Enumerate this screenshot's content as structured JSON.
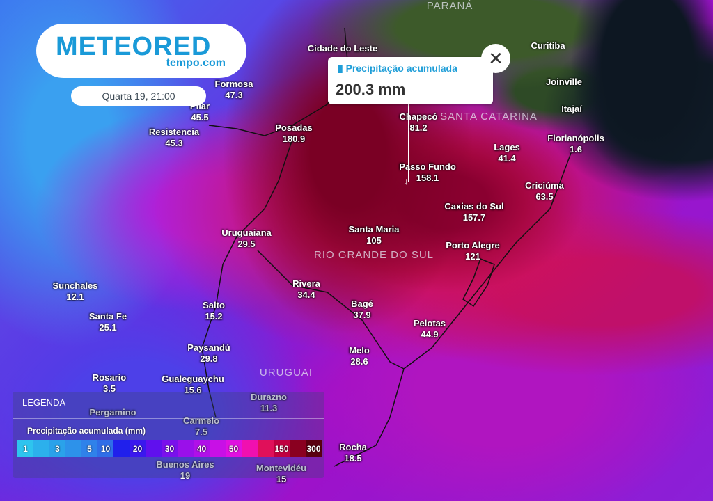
{
  "regions": [
    "PARANÁ",
    "SANTA CATARINA",
    "RIO GRANDE DO SUL",
    "URUGUAI"
  ],
  "cities": [
    {
      "name": "Formosa",
      "value": "47.3"
    },
    {
      "name": "Pilar",
      "value": "45.5"
    },
    {
      "name": "Resistencia",
      "value": "45.3"
    },
    {
      "name": "Cidade do Leste",
      "value": ""
    },
    {
      "name": "Posadas",
      "value": "180.9"
    },
    {
      "name": "Chapecó",
      "value": "81.2"
    },
    {
      "name": "Passo Fundo",
      "value": "158.1"
    },
    {
      "name": "Lages",
      "value": "41.4"
    },
    {
      "name": "Curitiba",
      "value": ""
    },
    {
      "name": "Joinville",
      "value": ""
    },
    {
      "name": "Itajaí",
      "value": ""
    },
    {
      "name": "Florianópolis",
      "value": "1.6"
    },
    {
      "name": "Criciúma",
      "value": "63.5"
    },
    {
      "name": "Caxias do Sul",
      "value": "157.7"
    },
    {
      "name": "Santa Maria",
      "value": "105"
    },
    {
      "name": "Porto Alegre",
      "value": "121"
    },
    {
      "name": "Uruguaiana",
      "value": "29.5"
    },
    {
      "name": "Sunchales",
      "value": "12.1"
    },
    {
      "name": "Rivera",
      "value": "34.4"
    },
    {
      "name": "Salto",
      "value": "15.2"
    },
    {
      "name": "Bagé",
      "value": "37.9"
    },
    {
      "name": "Santa Fe",
      "value": "25.1"
    },
    {
      "name": "Pelotas",
      "value": "44.9"
    },
    {
      "name": "Paysandú",
      "value": "29.8"
    },
    {
      "name": "Melo",
      "value": "28.6"
    },
    {
      "name": "Rosario",
      "value": "3.5"
    },
    {
      "name": "Gualeguaychu",
      "value": "15.6"
    },
    {
      "name": "Durazno",
      "value": "11.3"
    },
    {
      "name": "Pergamino",
      "value": ""
    },
    {
      "name": "Carmelo",
      "value": "7.5"
    },
    {
      "name": "Buenos Aires",
      "value": "19"
    },
    {
      "name": "Rocha",
      "value": "18.5"
    },
    {
      "name": "Montevidéu",
      "value": "15"
    }
  ],
  "logo": {
    "brand": "METEORED",
    "sub": "tempo.com"
  },
  "date": "Quarta 19, 21:00",
  "popup": {
    "title": "Precipitação acumulada",
    "value": "200.3 mm",
    "icon": "rain-gauge-icon",
    "close_icon": "close-icon"
  },
  "legend": {
    "heading": "LEGENDA",
    "title": "Precipitação acumulada (mm)",
    "scale": [
      {
        "label": "1",
        "color": "#2ec4ee"
      },
      {
        "label": "",
        "color": "#2cb0ec"
      },
      {
        "label": "3",
        "color": "#2aa2ea"
      },
      {
        "label": "",
        "color": "#2d92ea"
      },
      {
        "label": "5",
        "color": "#2f82ea"
      },
      {
        "label": "10",
        "color": "#2f6ee8"
      },
      {
        "label": "",
        "color": "#2020ec"
      },
      {
        "label": "20",
        "color": "#3a18ee"
      },
      {
        "label": "",
        "color": "#6010ee"
      },
      {
        "label": "30",
        "color": "#7a10ec"
      },
      {
        "label": "",
        "color": "#9a10ea"
      },
      {
        "label": "40",
        "color": "#b010e8"
      },
      {
        "label": "",
        "color": "#c810e6"
      },
      {
        "label": "50",
        "color": "#e010e0"
      },
      {
        "label": "",
        "color": "#f010b0"
      },
      {
        "label": "",
        "color": "#e0105a"
      },
      {
        "label": "150",
        "color": "#c00040"
      },
      {
        "label": "",
        "color": "#8a0020"
      },
      {
        "label": "300",
        "color": "#5a0010"
      }
    ]
  }
}
